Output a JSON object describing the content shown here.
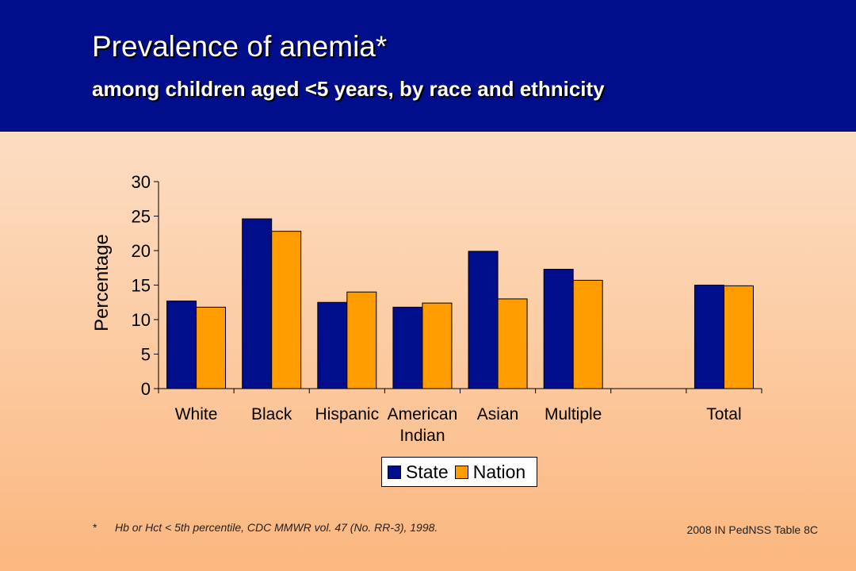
{
  "header": {
    "title": "Prevalence of anemia*",
    "subtitle": "among children aged <5 years, by race and ethnicity"
  },
  "chart_data": {
    "type": "bar",
    "categories": [
      "White",
      "Black",
      "Hispanic",
      "American Indian",
      "Asian",
      "Multiple",
      "",
      "Total"
    ],
    "series": [
      {
        "name": "State",
        "color": "#000e8c",
        "values": [
          12.7,
          24.6,
          12.5,
          11.8,
          19.9,
          17.3,
          null,
          15.0
        ]
      },
      {
        "name": "Nation",
        "color": "#ff9c00",
        "values": [
          11.8,
          22.8,
          14.0,
          12.4,
          13.0,
          15.7,
          null,
          14.9
        ]
      }
    ],
    "ylabel": "Percentage",
    "ylim": [
      0,
      30
    ],
    "yticks": [
      0,
      5,
      10,
      15,
      20,
      25,
      30
    ],
    "grid": false,
    "legend": "bottom-center"
  },
  "footnote": {
    "marker": "*",
    "text": "Hb or Hct < 5th percentile, CDC MMWR vol. 47 (No. RR-3), 1998."
  },
  "source": "2008 IN PedNSS Table 8C"
}
